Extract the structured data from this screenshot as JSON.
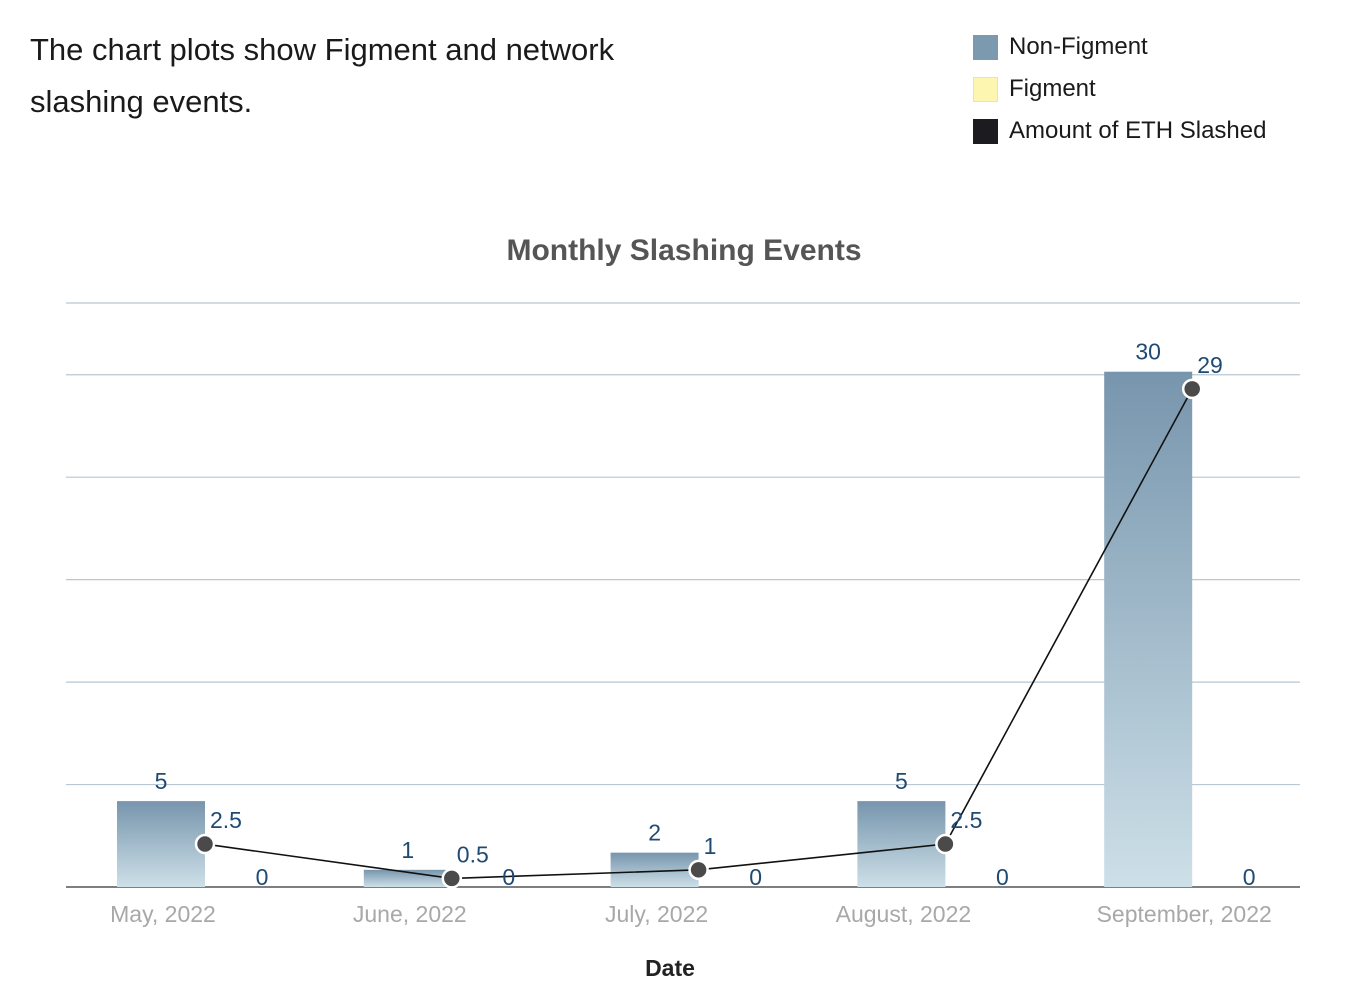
{
  "intro_text": "The chart plots show Figment and network slashing events.",
  "legend": [
    {
      "label": "Non-Figment",
      "color": "#7b9ab0",
      "border": "#7b9ab0"
    },
    {
      "label": "Figment",
      "color": "#fdf6b0",
      "border": "#efe59a"
    },
    {
      "label": "Amount of ETH Slashed",
      "color": "#1c1c20",
      "border": "#1c1c20"
    }
  ],
  "chart_data": {
    "type": "bar",
    "title": "Monthly Slashing Events",
    "xlabel": "Date",
    "ylabel": "",
    "categories": [
      "May, 2022",
      "June, 2022",
      "July, 2022",
      "August, 2022",
      "September, 2022"
    ],
    "series": [
      {
        "name": "Non-Figment",
        "type": "bar",
        "values": [
          5,
          1,
          2,
          5,
          30
        ]
      },
      {
        "name": "Figment",
        "type": "bar",
        "values": [
          0,
          0,
          0,
          0,
          0
        ]
      },
      {
        "name": "Amount of ETH Slashed",
        "type": "line",
        "values": [
          2.5,
          0.5,
          1,
          2.5,
          29
        ]
      }
    ],
    "ylim": [
      0,
      34
    ],
    "grid": true,
    "legend_position": "top-right"
  }
}
